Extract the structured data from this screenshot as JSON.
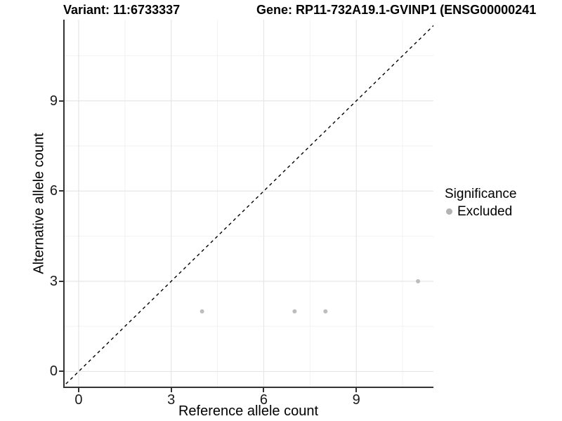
{
  "titles": {
    "variant": "Variant: 11:6733337",
    "gene": "Gene: RP11-732A19.1-GVINP1 (ENSG00000241"
  },
  "chart_data": {
    "type": "scatter",
    "title": "Variant: 11:6733337  |  Gene: RP11-732A19.1-GVINP1 (ENSG00000241",
    "xlabel": "Reference allele count",
    "ylabel": "Alternative allele count",
    "xlim": [
      -0.5,
      11.5
    ],
    "ylim": [
      -0.55,
      11.7
    ],
    "xticks": [
      0,
      3,
      6,
      9
    ],
    "yticks": [
      0,
      3,
      6,
      9
    ],
    "minor_ticks": [
      1.5,
      4.5,
      7.5,
      10.5
    ],
    "grid": true,
    "series": [
      {
        "name": "Excluded",
        "color": "#bdbdbd",
        "points": [
          [
            4,
            2
          ],
          [
            7,
            2
          ],
          [
            8,
            2
          ],
          [
            11,
            3
          ]
        ]
      }
    ],
    "identity_line": {
      "equation": "y = x",
      "style": "dashed",
      "color": "#000000"
    },
    "legend": {
      "title": "Significance",
      "position": "right",
      "entries": [
        {
          "label": "Excluded",
          "color": "#b3b3b3"
        }
      ]
    },
    "colors": {
      "axis_line": "#333333",
      "grid_major": "#e6e6e6",
      "grid_minor": "#f2f2f2",
      "point": "#bdbdbd"
    }
  }
}
